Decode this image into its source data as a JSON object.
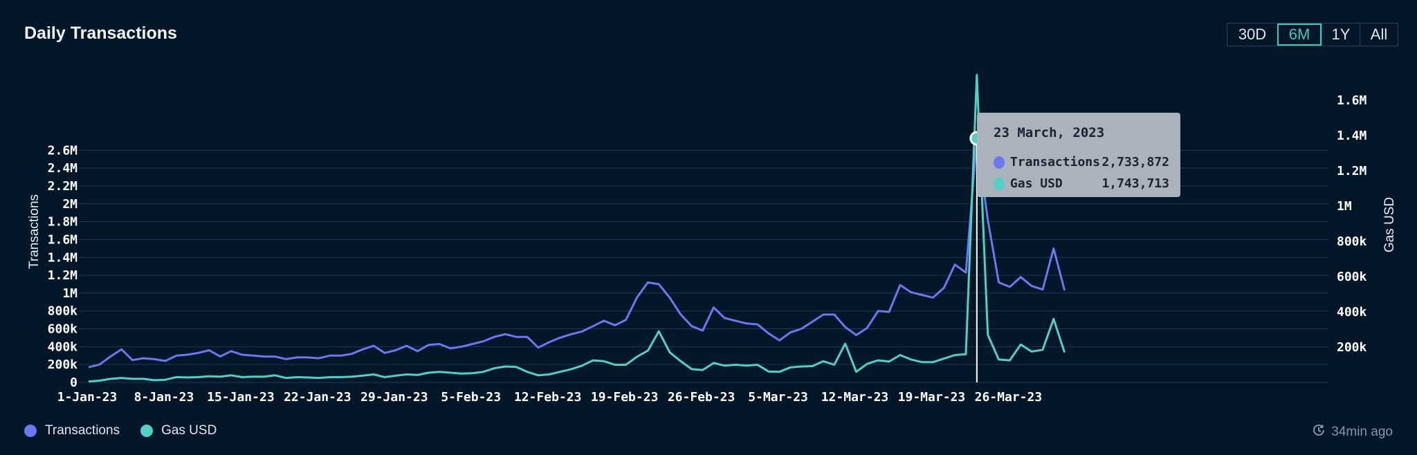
{
  "header": {
    "title": "Daily Transactions"
  },
  "range_buttons": [
    {
      "label": "30D",
      "active": false
    },
    {
      "label": "6M",
      "active": true
    },
    {
      "label": "1Y",
      "active": false
    },
    {
      "label": "All",
      "active": false
    }
  ],
  "tooltip": {
    "date": "23 March, 2023",
    "rows": [
      {
        "label": "Transactions",
        "value": "2,733,872"
      },
      {
        "label": "Gas USD",
        "value": "1,743,713"
      }
    ]
  },
  "legend": [
    {
      "label": "Transactions"
    },
    {
      "label": "Gas USD"
    }
  ],
  "footer": {
    "updated": "34min ago",
    "icon": "refresh-clock-icon"
  },
  "colors": {
    "background": "#031729",
    "transactions": "#6b78f2",
    "gas": "#4fd1c5",
    "grid": "#1f3a52",
    "crosshair": "#ffffff"
  },
  "chart_data": {
    "type": "line",
    "title": "Daily Transactions",
    "start_date": "2023-01-01",
    "x_tick_labels": [
      "1-Jan-23",
      "8-Jan-23",
      "15-Jan-23",
      "22-Jan-23",
      "29-Jan-23",
      "5-Feb-23",
      "12-Feb-23",
      "19-Feb-23",
      "26-Feb-23",
      "5-Mar-23",
      "12-Mar-23",
      "19-Mar-23",
      "26-Mar-23"
    ],
    "y_left": {
      "label": "Transactions",
      "ylim": [
        0,
        2700000
      ],
      "tick_labels": [
        "0",
        "200k",
        "400k",
        "600k",
        "800k",
        "1M",
        "1.2M",
        "1.4M",
        "1.6M",
        "1.8M",
        "2M",
        "2.2M",
        "2.4M",
        "2.6M"
      ]
    },
    "y_right": {
      "label": "Gas USD",
      "ylim": [
        0,
        1720000
      ],
      "tick_labels": [
        "200k",
        "400k",
        "600k",
        "800k",
        "1M",
        "1.2M",
        "1.4M",
        "1.6M"
      ]
    },
    "grid": true,
    "highlight_date": "2023-03-23",
    "series": [
      {
        "name": "Transactions",
        "axis": "left",
        "values": [
          170000,
          200000,
          290000,
          370000,
          250000,
          270000,
          260000,
          240000,
          300000,
          310000,
          330000,
          360000,
          290000,
          350000,
          310000,
          300000,
          290000,
          290000,
          260000,
          280000,
          280000,
          270000,
          300000,
          300000,
          320000,
          370000,
          410000,
          330000,
          360000,
          410000,
          350000,
          420000,
          430000,
          380000,
          400000,
          430000,
          460000,
          510000,
          540000,
          510000,
          510000,
          390000,
          450000,
          500000,
          540000,
          570000,
          630000,
          690000,
          640000,
          700000,
          950000,
          1120000,
          1100000,
          950000,
          760000,
          630000,
          580000,
          840000,
          720000,
          690000,
          660000,
          650000,
          550000,
          470000,
          560000,
          600000,
          680000,
          760000,
          760000,
          620000,
          530000,
          610000,
          800000,
          790000,
          1090000,
          1010000,
          980000,
          950000,
          1060000,
          1320000,
          1230000,
          2733872,
          1820000,
          1120000,
          1070000,
          1180000,
          1080000,
          1040000,
          1500000,
          1030000
        ]
      },
      {
        "name": "Gas USD",
        "axis": "right",
        "values": [
          5000,
          10000,
          20000,
          25000,
          20000,
          20000,
          12000,
          15000,
          30000,
          28000,
          30000,
          35000,
          32000,
          40000,
          30000,
          32000,
          32000,
          40000,
          25000,
          30000,
          28000,
          25000,
          30000,
          30000,
          32000,
          38000,
          45000,
          30000,
          38000,
          45000,
          42000,
          55000,
          60000,
          55000,
          50000,
          52000,
          60000,
          80000,
          90000,
          88000,
          60000,
          40000,
          45000,
          60000,
          75000,
          95000,
          125000,
          120000,
          100000,
          100000,
          145000,
          180000,
          290000,
          170000,
          120000,
          75000,
          70000,
          110000,
          95000,
          100000,
          95000,
          100000,
          62000,
          60000,
          85000,
          90000,
          92000,
          120000,
          100000,
          220000,
          60000,
          105000,
          125000,
          118000,
          155000,
          130000,
          115000,
          115000,
          135000,
          155000,
          160000,
          1743713,
          270000,
          130000,
          125000,
          215000,
          175000,
          185000,
          360000,
          170000
        ]
      }
    ]
  }
}
